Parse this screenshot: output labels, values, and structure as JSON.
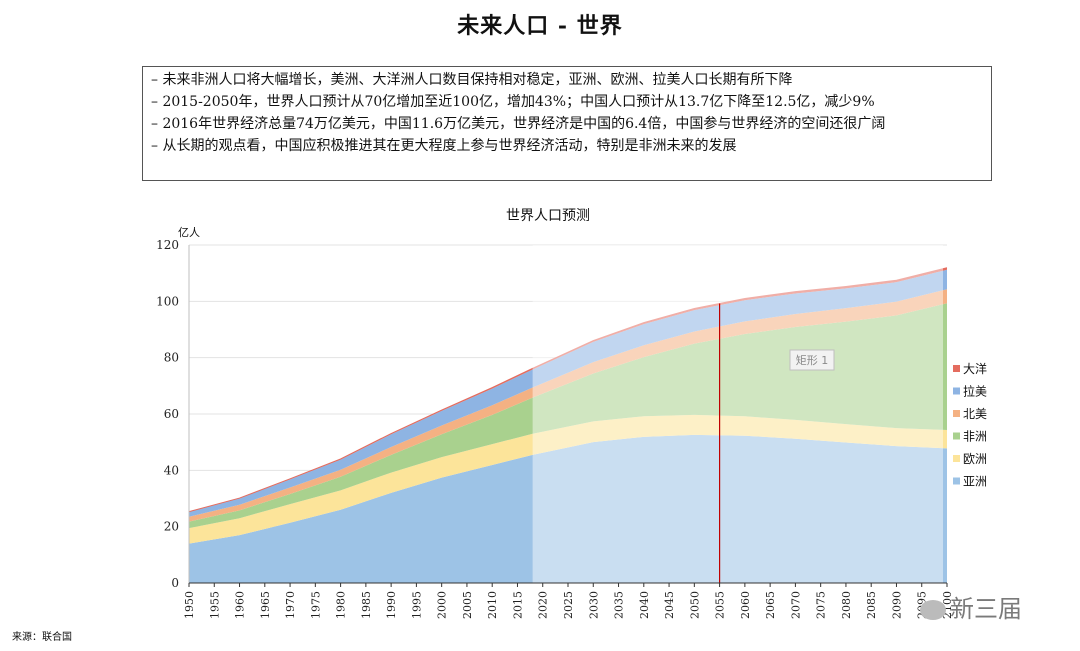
{
  "title": "未来人口 - 世界",
  "bullets": [
    "– 未来非洲人口将大幅增长，美洲、大洋洲人口数目保持相对稳定，亚洲、欧洲、拉美人口长期有所下降",
    "– 2015-2050年，世界人口预计从70亿增加至近100亿，增加43%；中国人口预计从13.7亿下降至12.5亿，减少9%",
    "– 2016年世界经济总量74万亿美元，中国11.6万亿美元，世界经济是中国的6.4倍，中国参与世界经济的空间还很广阔",
    "– 从长期的观点看，中国应积极推进其在更大程度上参与世界经济活动，特别是非洲未来的发展"
  ],
  "source": "来源：联合国",
  "watermark": "新三届",
  "chart_data": {
    "type": "area",
    "stacked": true,
    "title": "世界人口预测",
    "ylabel": "亿人",
    "xlabel": "",
    "ylim": [
      0,
      120
    ],
    "yticks": [
      0,
      20,
      40,
      60,
      80,
      100,
      120
    ],
    "xlim": [
      1950,
      2100
    ],
    "xticks": [
      1950,
      1955,
      1960,
      1965,
      1970,
      1975,
      1980,
      1985,
      1990,
      1995,
      2000,
      2005,
      2010,
      2015,
      2020,
      2025,
      2030,
      2035,
      2040,
      2045,
      2050,
      2055,
      2060,
      2065,
      2070,
      2075,
      2080,
      2085,
      2090,
      2095,
      2100
    ],
    "xtick_labels": [
      "1950",
      "1955",
      "1960",
      "1965",
      "1970",
      "1975",
      "1980",
      "1985",
      "1990",
      "1995",
      "2000",
      "2005",
      "2010",
      "2015",
      "2020",
      "2025",
      "2030",
      "2035",
      "2040",
      "2045",
      "2050",
      "2055",
      "2060",
      "2065",
      "2070",
      "2075",
      "2080",
      "2085",
      "2090",
      "2095",
      "2100"
    ],
    "projection_start": 2018,
    "marker_line": 2055,
    "annotation": "矩形 1",
    "legend_position": "right",
    "x": [
      1950,
      1960,
      1970,
      1980,
      1990,
      2000,
      2010,
      2018,
      2030,
      2040,
      2050,
      2060,
      2070,
      2080,
      2090,
      2100
    ],
    "series": [
      {
        "name": "亚洲",
        "color": "#9dc3e6",
        "values": [
          14.0,
          17.0,
          21.4,
          26.0,
          32.0,
          37.4,
          41.9,
          45.5,
          50.0,
          51.9,
          52.6,
          52.3,
          51.2,
          49.9,
          48.6,
          47.8
        ]
      },
      {
        "name": "欧洲",
        "color": "#fce49a",
        "values": [
          5.5,
          6.0,
          6.6,
          6.9,
          7.2,
          7.3,
          7.4,
          7.5,
          7.4,
          7.3,
          7.1,
          6.9,
          6.7,
          6.5,
          6.4,
          6.5
        ]
      },
      {
        "name": "非洲",
        "color": "#a9d18e",
        "values": [
          2.3,
          2.8,
          3.6,
          4.8,
          6.3,
          8.1,
          10.4,
          12.8,
          17.0,
          21.0,
          25.3,
          29.2,
          33.0,
          36.4,
          40.0,
          45.0
        ]
      },
      {
        "name": "北美",
        "color": "#f4b183",
        "values": [
          1.7,
          2.0,
          2.3,
          2.5,
          2.8,
          3.1,
          3.4,
          3.6,
          4.0,
          4.2,
          4.3,
          4.5,
          4.6,
          4.8,
          4.9,
          5.0
        ]
      },
      {
        "name": "拉美",
        "color": "#8eb4e3",
        "values": [
          1.7,
          2.2,
          2.9,
          3.6,
          4.5,
          5.2,
          5.9,
          6.4,
          7.2,
          7.5,
          7.6,
          7.5,
          7.3,
          7.0,
          6.9,
          6.9
        ]
      },
      {
        "name": "大洋",
        "color": "#e46c5f",
        "values": [
          0.13,
          0.16,
          0.2,
          0.23,
          0.27,
          0.31,
          0.37,
          0.41,
          0.48,
          0.53,
          0.57,
          0.61,
          0.64,
          0.67,
          0.7,
          0.72
        ]
      }
    ]
  }
}
